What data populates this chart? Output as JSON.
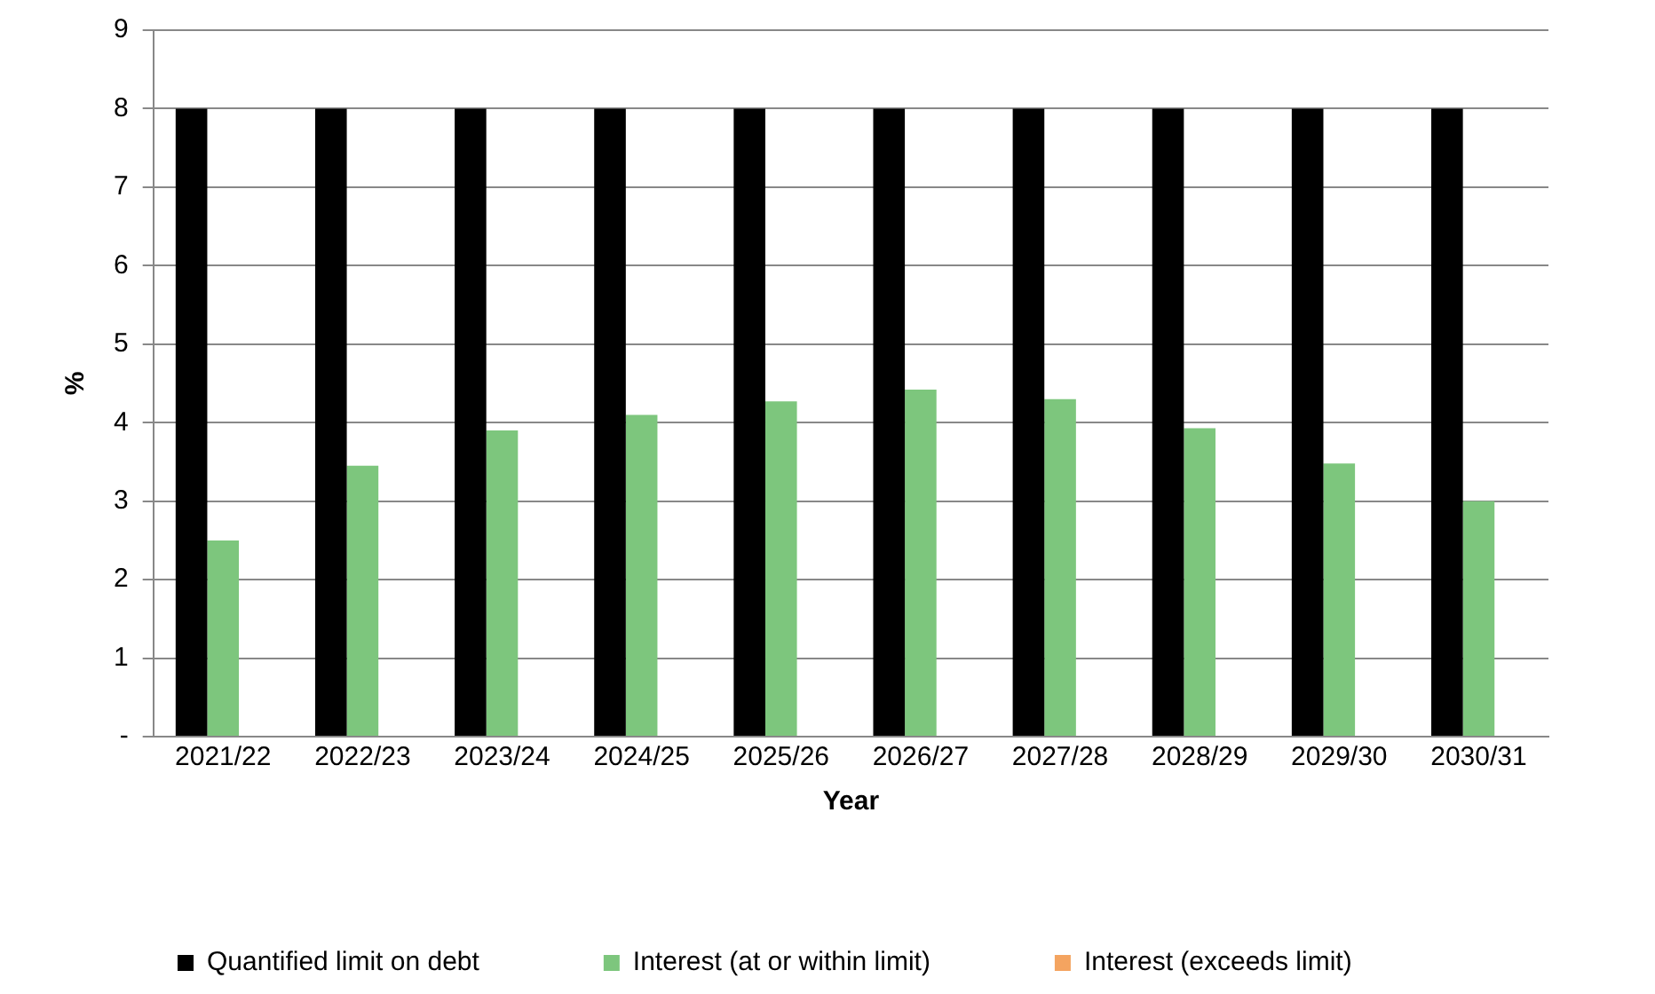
{
  "chart_data": {
    "type": "bar",
    "xlabel": "Year",
    "ylabel": "%",
    "categories": [
      "2021/22",
      "2022/23",
      "2023/24",
      "2024/25",
      "2025/26",
      "2026/27",
      "2027/28",
      "2028/29",
      "2029/30",
      "2030/31"
    ],
    "series": [
      {
        "name": "Quantified limit on debt",
        "color": "#000000",
        "values": [
          8,
          8,
          8,
          8,
          8,
          8,
          8,
          8,
          8,
          8
        ]
      },
      {
        "name": "Interest (at or within limit)",
        "color": "#7dc67d",
        "values": [
          2.5,
          3.45,
          3.9,
          4.1,
          4.27,
          4.42,
          4.3,
          3.93,
          3.48,
          3.0
        ]
      },
      {
        "name": "Interest (exceeds limit)",
        "color": "#f4a460",
        "values": [
          null,
          null,
          null,
          null,
          null,
          null,
          null,
          null,
          null,
          null
        ]
      }
    ],
    "ylim": [
      0,
      9
    ],
    "yticks": [
      {
        "value": 0,
        "label": "-"
      },
      1,
      2,
      3,
      4,
      5,
      6,
      7,
      8,
      9
    ],
    "grid": "y",
    "legend": "bottom"
  }
}
